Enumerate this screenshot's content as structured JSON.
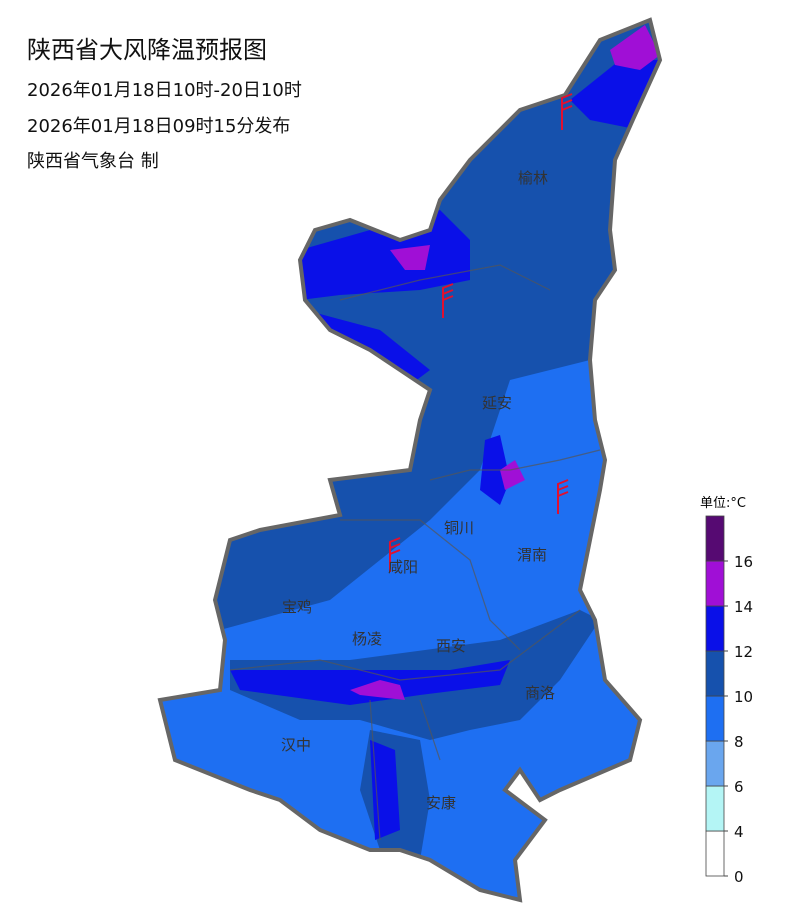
{
  "header": {
    "title": "陕西省大风降温预报图",
    "valid_period": "2026年01月18日10时-20日10时",
    "issued": "2026年01月18日09时15分发布",
    "issuer": "陕西省气象台 制"
  },
  "cities": [
    {
      "name": "榆林"
    },
    {
      "name": "延安"
    },
    {
      "name": "铜川"
    },
    {
      "name": "渭南"
    },
    {
      "name": "咸阳"
    },
    {
      "name": "宝鸡"
    },
    {
      "name": "杨凌"
    },
    {
      "name": "西安"
    },
    {
      "name": "商洛"
    },
    {
      "name": "汉中"
    },
    {
      "name": "安康"
    }
  ],
  "legend": {
    "title": "单位:°C",
    "ticks": [
      0,
      4,
      6,
      8,
      10,
      12,
      14,
      16
    ],
    "colors": [
      "#ffffff",
      "#b4f5f5",
      "#6aa6ee",
      "#1e6ff2",
      "#1651ad",
      "#0a10e8",
      "#a00fd6",
      "#560a72"
    ]
  }
}
